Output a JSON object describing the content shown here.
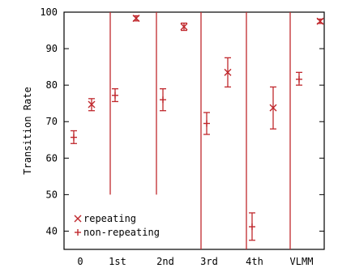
{
  "chart_data": {
    "type": "scatter",
    "ylabel": "Transition Rate",
    "ylim": [
      35,
      100
    ],
    "yticks": [
      40,
      50,
      60,
      70,
      80,
      90,
      100
    ],
    "categories": [
      "0",
      "1st",
      "2nd",
      "3rd",
      "4th",
      "VLMM"
    ],
    "grid": false,
    "legend_placement": "bottom-left",
    "color": "#c0282d",
    "series": [
      {
        "name": "repeating",
        "marker": "x",
        "points": [
          {
            "category": "0",
            "y": 74.7,
            "low": 73.0,
            "high": 76.3
          },
          {
            "category": "1st",
            "y": 98.3,
            "low": 97.6,
            "high": 99.0
          },
          {
            "category": "2nd",
            "y": 96.0,
            "low": 95.0,
            "high": 97.0
          },
          {
            "category": "3rd",
            "y": 83.5,
            "low": 79.5,
            "high": 87.5
          },
          {
            "category": "4th",
            "y": 73.8,
            "low": 68.0,
            "high": 79.5
          },
          {
            "category": "VLMM",
            "y": 97.5,
            "low": 96.9,
            "high": 98.1
          }
        ]
      },
      {
        "name": "non-repeating",
        "marker": "+",
        "points": [
          {
            "category": "0",
            "y": 65.7,
            "low": 64.0,
            "high": 67.5
          },
          {
            "category": "1st",
            "y": 77.2,
            "low": 75.5,
            "high": 79.0
          },
          {
            "category": "2nd",
            "y": 76.0,
            "low": 73.0,
            "high": 79.0
          },
          {
            "category": "3rd",
            "y": 69.5,
            "low": 66.5,
            "high": 72.5
          },
          {
            "category": "4th",
            "y": 41.2,
            "low": 37.5,
            "high": 45.0
          },
          {
            "category": "VLMM",
            "y": 81.6,
            "low": 80.0,
            "high": 83.5
          }
        ]
      }
    ]
  }
}
